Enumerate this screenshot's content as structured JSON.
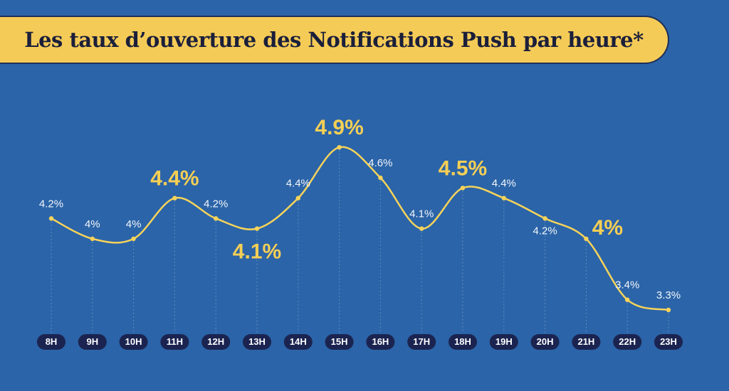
{
  "title": "Les taux d’ouverture des Notifications Push par heure*",
  "colors": {
    "background": "#2b64a8",
    "title_band": "#f5cb57",
    "line": "#f6d35a",
    "highlight_label": "#f6cf55",
    "pill": "#1b2450"
  },
  "chart_data": {
    "type": "line",
    "categories": [
      "8H",
      "9H",
      "10H",
      "11H",
      "12H",
      "13H",
      "14H",
      "15H",
      "16H",
      "17H",
      "18H",
      "19H",
      "20H",
      "21H",
      "22H",
      "23H"
    ],
    "values": [
      4.2,
      4.0,
      4.0,
      4.4,
      4.2,
      4.1,
      4.4,
      4.9,
      4.6,
      4.1,
      4.5,
      4.4,
      4.2,
      4.0,
      3.4,
      3.3
    ],
    "labels": [
      "4.2%",
      "4%",
      "4%",
      "4.4%",
      "4.2%",
      "4.1%",
      "4.4%",
      "4.9%",
      "4.6%",
      "4.1%",
      "4.5%",
      "4.4%",
      "4.2%",
      "4%",
      "3.4%",
      "3.3%"
    ],
    "highlighted": [
      false,
      false,
      false,
      true,
      false,
      true,
      false,
      true,
      false,
      false,
      true,
      false,
      false,
      true,
      false,
      false
    ],
    "label_position": [
      "above",
      "above",
      "above",
      "above",
      "above",
      "below",
      "above",
      "above",
      "above",
      "above",
      "above",
      "above",
      "below",
      "right",
      "above",
      "above"
    ],
    "grid": false,
    "xlabel": "",
    "ylabel": ""
  }
}
